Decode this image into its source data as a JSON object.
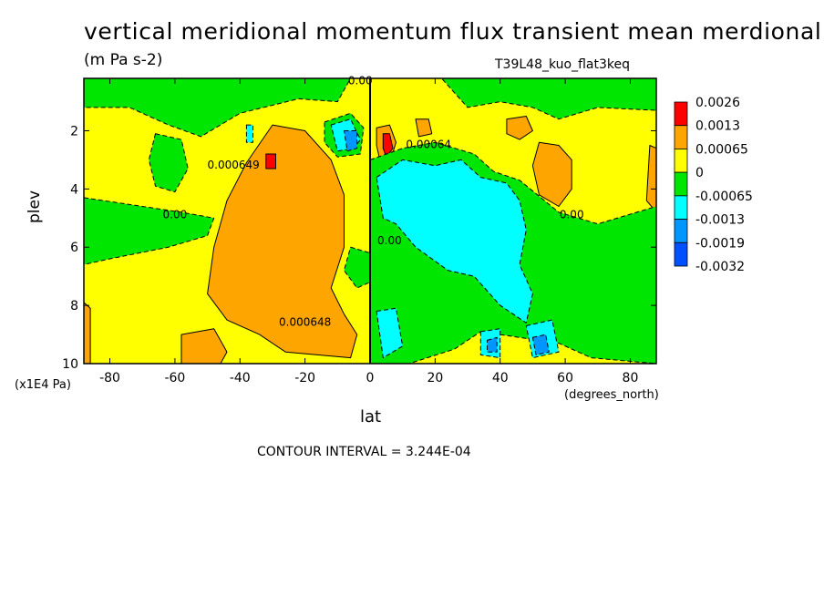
{
  "chart_data": {
    "type": "heatmap",
    "title": "vertical meridional momentum flux transient mean merdional",
    "subtitle": "(m Pa s-2)",
    "run_id": "T39L48_kuo_flat3keq",
    "xlabel": "lat",
    "x_unit": "(degrees_north)",
    "ylabel": "plev",
    "y_unit": "(x1E4 Pa)",
    "contour_interval_text": "CONTOUR INTERVAL = 3.244E-04",
    "xlim": [
      -88,
      88
    ],
    "ylim": [
      10,
      0.2
    ],
    "x_ticks": [
      "-80",
      "-60",
      "-40",
      "-20",
      "0",
      "20",
      "40",
      "60",
      "80"
    ],
    "x_tick_values": [
      -80,
      -60,
      -40,
      -20,
      0,
      20,
      40,
      60,
      80
    ],
    "y_ticks": [
      "2",
      "4",
      "6",
      "8",
      "10"
    ],
    "y_tick_values": [
      2,
      4,
      6,
      8,
      10
    ],
    "legend": {
      "labels": [
        "0.0026",
        "0.0013",
        "0.00065",
        "0",
        "-0.00065",
        "-0.0013",
        "-0.0019",
        "-0.0032"
      ],
      "colors": [
        "#ff0000",
        "#ffa500",
        "#ffa500",
        "#ffff00",
        "#00e600",
        "#00ffff",
        "#0096ff",
        "#0050ff"
      ],
      "swatch_colors": [
        "#ff0000",
        "#ffa500",
        "#ffff00",
        "#00e600",
        "#00ffff",
        "#0096ff",
        "#0050ff"
      ]
    },
    "contour_labels": [
      {
        "text": "0.00",
        "lat": -3,
        "plev": 0.4
      },
      {
        "text": "0.000649",
        "lat": -42,
        "plev": 3.3
      },
      {
        "text": "0.00",
        "lat": -60,
        "plev": 5.0
      },
      {
        "text": "0.00064",
        "lat": 18,
        "plev": 2.6
      },
      {
        "text": "0.00",
        "lat": 6,
        "plev": 5.9
      },
      {
        "text": "0.00",
        "lat": 62,
        "plev": 5.0
      },
      {
        "text": "0.000648",
        "lat": -20,
        "plev": 8.7
      }
    ],
    "regions": [
      {
        "level": "0.00065",
        "points": [
          [
            -30,
            1.8
          ],
          [
            -20,
            2.0
          ],
          [
            -12,
            3.0
          ],
          [
            -8,
            4.2
          ],
          [
            -8,
            6.0
          ],
          [
            -12,
            7.4
          ],
          [
            -8,
            8.3
          ],
          [
            -4,
            9.0
          ],
          [
            -6,
            9.8
          ],
          [
            -26,
            9.6
          ],
          [
            -34,
            9.0
          ],
          [
            -44,
            8.5
          ],
          [
            -50,
            7.6
          ],
          [
            -48,
            6.0
          ],
          [
            -44,
            4.4
          ],
          [
            -38,
            3.1
          ]
        ]
      },
      {
        "level": "0.00065",
        "points": [
          [
            52,
            2.4
          ],
          [
            58,
            2.5
          ],
          [
            62,
            3.0
          ],
          [
            62,
            4.0
          ],
          [
            58,
            4.6
          ],
          [
            52,
            4.2
          ],
          [
            50,
            3.2
          ]
        ]
      },
      {
        "level": "0.00065",
        "points": [
          [
            -58,
            9.0
          ],
          [
            -48,
            8.8
          ],
          [
            -44,
            9.6
          ],
          [
            -46,
            10
          ],
          [
            -58,
            10
          ]
        ]
      },
      {
        "level": "0.00065",
        "points": [
          [
            42,
            1.6
          ],
          [
            48,
            1.5
          ],
          [
            50,
            2.0
          ],
          [
            46,
            2.3
          ],
          [
            42,
            2.1
          ]
        ]
      },
      {
        "level": "0.00065",
        "points": [
          [
            14,
            1.6
          ],
          [
            18,
            1.6
          ],
          [
            19,
            2.1
          ],
          [
            15,
            2.2
          ]
        ]
      },
      {
        "level": "0.00065",
        "points": [
          [
            86,
            2.5
          ],
          [
            88,
            2.6
          ],
          [
            88,
            4.8
          ],
          [
            85,
            4.4
          ]
        ]
      },
      {
        "level": "0.00065",
        "points": [
          [
            -88,
            7.9
          ],
          [
            -86,
            8.1
          ],
          [
            -86,
            10
          ],
          [
            -88,
            10
          ]
        ]
      },
      {
        "level": "0.0013",
        "points": [
          [
            2,
            1.9
          ],
          [
            6,
            1.8
          ],
          [
            8,
            2.4
          ],
          [
            6,
            3.1
          ],
          [
            3,
            3.0
          ],
          [
            2,
            2.5
          ]
        ]
      },
      {
        "level": "0.0026",
        "points": [
          [
            4,
            2.1
          ],
          [
            6,
            2.1
          ],
          [
            7,
            2.6
          ],
          [
            5,
            2.9
          ],
          [
            4,
            2.6
          ]
        ]
      },
      {
        "level": "0.0026",
        "points": [
          [
            -32,
            2.8
          ],
          [
            -29,
            2.8
          ],
          [
            -29,
            3.3
          ],
          [
            -32,
            3.3
          ]
        ]
      },
      {
        "level": "-0.00065",
        "points": [
          [
            -88,
            0.2
          ],
          [
            -6,
            0.2
          ],
          [
            -10,
            1.0
          ],
          [
            -22,
            0.9
          ],
          [
            -40,
            1.4
          ],
          [
            -52,
            2.2
          ],
          [
            -62,
            1.8
          ],
          [
            -74,
            1.2
          ],
          [
            -88,
            1.2
          ]
        ]
      },
      {
        "level": "-0.00065",
        "points": [
          [
            -88,
            4.3
          ],
          [
            -70,
            4.6
          ],
          [
            -58,
            4.8
          ],
          [
            -48,
            5.0
          ],
          [
            -50,
            5.6
          ],
          [
            -62,
            6.0
          ],
          [
            -80,
            6.4
          ],
          [
            -88,
            6.6
          ]
        ]
      },
      {
        "level": "-0.00065",
        "points": [
          [
            -66,
            2.1
          ],
          [
            -58,
            2.3
          ],
          [
            -56,
            3.3
          ],
          [
            -60,
            4.1
          ],
          [
            -66,
            3.9
          ],
          [
            -68,
            3.0
          ]
        ]
      },
      {
        "level": "-0.00065",
        "points": [
          [
            -14,
            1.7
          ],
          [
            -6,
            1.4
          ],
          [
            -2,
            1.9
          ],
          [
            -3,
            2.8
          ],
          [
            -10,
            2.9
          ],
          [
            -14,
            2.4
          ]
        ]
      },
      {
        "level": "-0.00065",
        "points": [
          [
            0,
            3.0
          ],
          [
            10,
            2.6
          ],
          [
            20,
            2.4
          ],
          [
            32,
            2.8
          ],
          [
            38,
            3.4
          ],
          [
            46,
            3.7
          ],
          [
            58,
            4.8
          ],
          [
            70,
            5.2
          ],
          [
            88,
            4.6
          ],
          [
            88,
            10
          ],
          [
            68,
            9.8
          ],
          [
            58,
            9.3
          ],
          [
            46,
            9.1
          ],
          [
            34,
            8.9
          ],
          [
            26,
            9.5
          ],
          [
            12,
            10
          ],
          [
            0,
            10
          ]
        ]
      },
      {
        "level": "-0.00065",
        "points": [
          [
            22,
            0.2
          ],
          [
            88,
            0.2
          ],
          [
            88,
            1.3
          ],
          [
            70,
            1.2
          ],
          [
            58,
            1.6
          ],
          [
            50,
            1.2
          ],
          [
            40,
            1.0
          ],
          [
            30,
            1.2
          ]
        ]
      },
      {
        "level": "-0.00065",
        "points": [
          [
            -6,
            6.0
          ],
          [
            0,
            6.2
          ],
          [
            0,
            7.2
          ],
          [
            -4,
            7.4
          ],
          [
            -8,
            6.8
          ]
        ]
      },
      {
        "level": "-0.0013",
        "points": [
          [
            2,
            3.6
          ],
          [
            10,
            3.0
          ],
          [
            20,
            3.2
          ],
          [
            28,
            3.0
          ],
          [
            34,
            3.6
          ],
          [
            42,
            3.8
          ],
          [
            46,
            4.4
          ],
          [
            48,
            5.4
          ],
          [
            46,
            6.6
          ],
          [
            50,
            7.6
          ],
          [
            48,
            8.6
          ],
          [
            40,
            8.0
          ],
          [
            32,
            7.0
          ],
          [
            24,
            6.8
          ],
          [
            14,
            6.0
          ],
          [
            8,
            5.2
          ],
          [
            4,
            5.0
          ]
        ]
      },
      {
        "level": "-0.0013",
        "points": [
          [
            -12,
            1.8
          ],
          [
            -6,
            1.6
          ],
          [
            -3,
            2.3
          ],
          [
            -5,
            2.6
          ],
          [
            -10,
            2.7
          ]
        ]
      },
      {
        "level": "-0.0013",
        "points": [
          [
            -38,
            1.8
          ],
          [
            -36,
            1.8
          ],
          [
            -36,
            2.4
          ],
          [
            -38,
            2.4
          ]
        ]
      },
      {
        "level": "-0.0013",
        "points": [
          [
            48,
            8.7
          ],
          [
            56,
            8.5
          ],
          [
            58,
            9.6
          ],
          [
            50,
            9.8
          ]
        ]
      },
      {
        "level": "-0.0013",
        "points": [
          [
            34,
            8.9
          ],
          [
            40,
            8.8
          ],
          [
            40,
            9.8
          ],
          [
            34,
            9.7
          ]
        ]
      },
      {
        "level": "-0.0013",
        "points": [
          [
            2,
            8.2
          ],
          [
            8,
            8.1
          ],
          [
            10,
            9.4
          ],
          [
            4,
            9.8
          ]
        ]
      },
      {
        "level": "-0.0019",
        "points": [
          [
            -8,
            2.0
          ],
          [
            -4,
            2.0
          ],
          [
            -4,
            2.6
          ],
          [
            -7,
            2.7
          ]
        ]
      },
      {
        "level": "-0.0019",
        "points": [
          [
            50,
            9.1
          ],
          [
            54,
            9.0
          ],
          [
            55,
            9.6
          ],
          [
            51,
            9.7
          ]
        ]
      },
      {
        "level": "-0.0019",
        "points": [
          [
            36,
            9.2
          ],
          [
            39,
            9.1
          ],
          [
            39,
            9.6
          ],
          [
            36,
            9.6
          ]
        ]
      }
    ],
    "zero_line": [
      [
        0,
        0.2
      ],
      [
        0,
        10
      ]
    ]
  }
}
